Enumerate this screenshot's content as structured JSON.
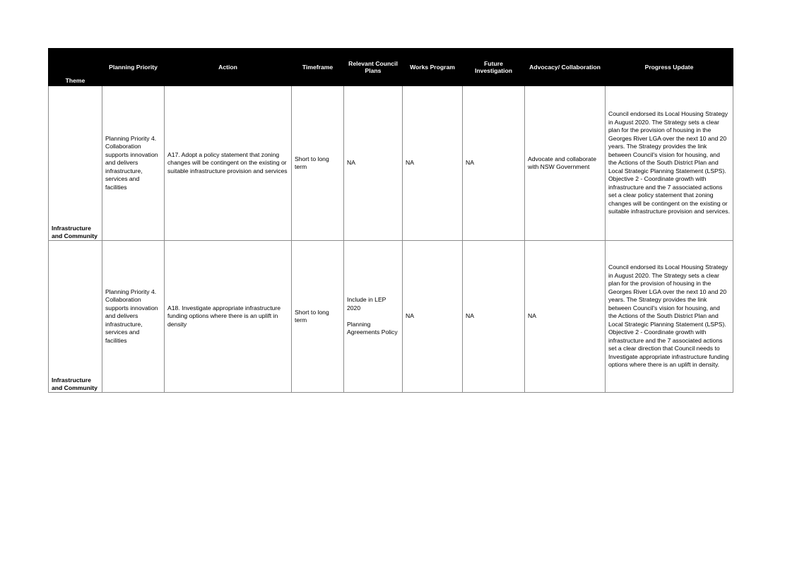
{
  "table": {
    "headers": [
      "Theme",
      "Planning Priority",
      "Action",
      "Timeframe",
      "Relevant Council Plans",
      "Works Program",
      "Future Investigation",
      "Advocacy/ Collaboration",
      "Progress Update"
    ],
    "rows": [
      {
        "theme": "Infrastructure and Community",
        "planning_priority": "Planning Priority 4. Collaboration supports innovation and delivers infrastructure, services and facilities",
        "action": "A17. Adopt a policy statement that zoning changes will be contingent on the existing or suitable infrastructure provision and services",
        "timeframe": "Short to long term",
        "relevant_council_plans": "NA",
        "works_program": "NA",
        "future_investigation": "NA",
        "advocacy_collaboration": "Advocate and collaborate with NSW Government",
        "progress_update": "Council endorsed its Local Housing Strategy in August 2020. The Strategy sets a clear plan for the provision of housing in the Georges River LGA over the next 10 and 20 years. The Strategy provides the link between Council's vision for housing, and the Actions of the South District Plan and Local Strategic Planning Statement (LSPS). Objective 2 - Coordinate growth with infrastructure and the 7 associated actions set a clear policy statement that zoning changes will be contingent on the existing or suitable infrastructure provision and services."
      },
      {
        "theme": "Infrastructure and Community",
        "planning_priority": "Planning Priority 4. Collaboration supports innovation and delivers infrastructure, services and facilities",
        "action": "A18. Investigate appropriate infrastructure funding options where there is an uplift in density",
        "timeframe": "Short to long term",
        "relevant_council_plans": "Include in LEP 2020\n\nPlanning Agreements Policy",
        "works_program": "NA",
        "future_investigation": "NA",
        "advocacy_collaboration": "NA",
        "progress_update": "Council endorsed its Local Housing Strategy in August 2020. The Strategy sets a clear plan for the provision of housing in the Georges River LGA over the next 10 and 20 years. The Strategy provides the link between Council's vision for housing, and the Actions of the South District Plan and Local Strategic Planning Statement (LSPS). Objective 2 - Coordinate growth with infrastructure and the 7 associated actions set a clear direction that Council needs to Investigate appropriate infrastructure funding options where there is an uplift in density."
      }
    ]
  }
}
